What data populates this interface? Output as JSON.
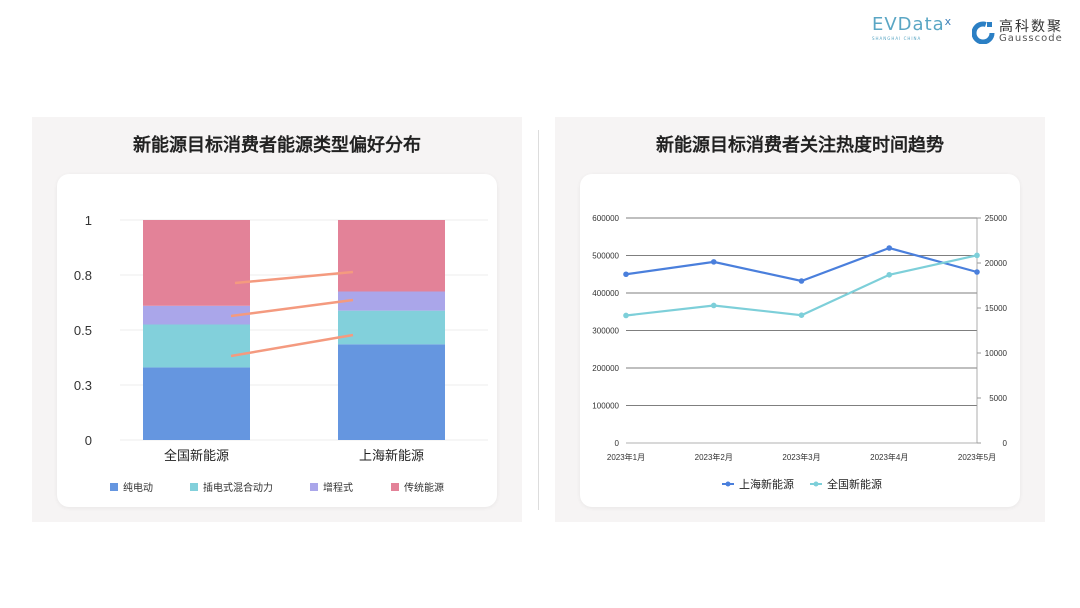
{
  "logos": {
    "evdata": "EVData",
    "evdata_sub": "SHANGHAI CHINA",
    "gauss_cn": "高科数聚",
    "gauss_en": "Gausscode"
  },
  "chart_data": [
    {
      "type": "bar",
      "stacked": true,
      "title": "新能源目标消费者能源类型偏好分布",
      "categories": [
        "全国新能源",
        "上海新能源"
      ],
      "ylim": [
        0,
        1
      ],
      "yticks": [
        0,
        0.25,
        0.5,
        0.75,
        1
      ],
      "ytick_labels": [
        "0",
        "0.3",
        "0.5",
        "0.8",
        "1"
      ],
      "grid": true,
      "legend": "bottom",
      "series": [
        {
          "name": "纯电动",
          "values": [
            0.33,
            0.435
          ],
          "color": "#6596e0"
        },
        {
          "name": "插电式混合动力",
          "values": [
            0.195,
            0.153
          ],
          "color": "#82d0db"
        },
        {
          "name": "增程式",
          "values": [
            0.085,
            0.087
          ],
          "color": "#aaa6ea"
        },
        {
          "name": "传统能源",
          "values": [
            0.39,
            0.325
          ],
          "color": "#e38298"
        }
      ],
      "connector_color": "#f49a7f"
    },
    {
      "type": "line",
      "title": "新能源目标消费者关注热度时间趋势",
      "categories": [
        "2023年1月",
        "2023年2月",
        "2023年3月",
        "2023年4月",
        "2023年5月"
      ],
      "ylim": [
        0,
        600000
      ],
      "yticks": [
        "0",
        "100000",
        "200000",
        "300000",
        "400000",
        "500000",
        "600000"
      ],
      "y2lim": [
        0,
        25000
      ],
      "y2ticks": [
        "0",
        "5000",
        "10000",
        "15000",
        "20000",
        "25000"
      ],
      "grid": true,
      "legend": "bottom",
      "series": [
        {
          "name": "上海新能源",
          "axis": "left",
          "values": [
            450000,
            483000,
            432000,
            520000,
            456000
          ],
          "color": "#4a7fdc"
        },
        {
          "name": "全国新能源",
          "axis": "right",
          "values": [
            14170,
            15280,
            14200,
            18690,
            20850
          ],
          "color": "#7dcfd9"
        }
      ]
    }
  ]
}
